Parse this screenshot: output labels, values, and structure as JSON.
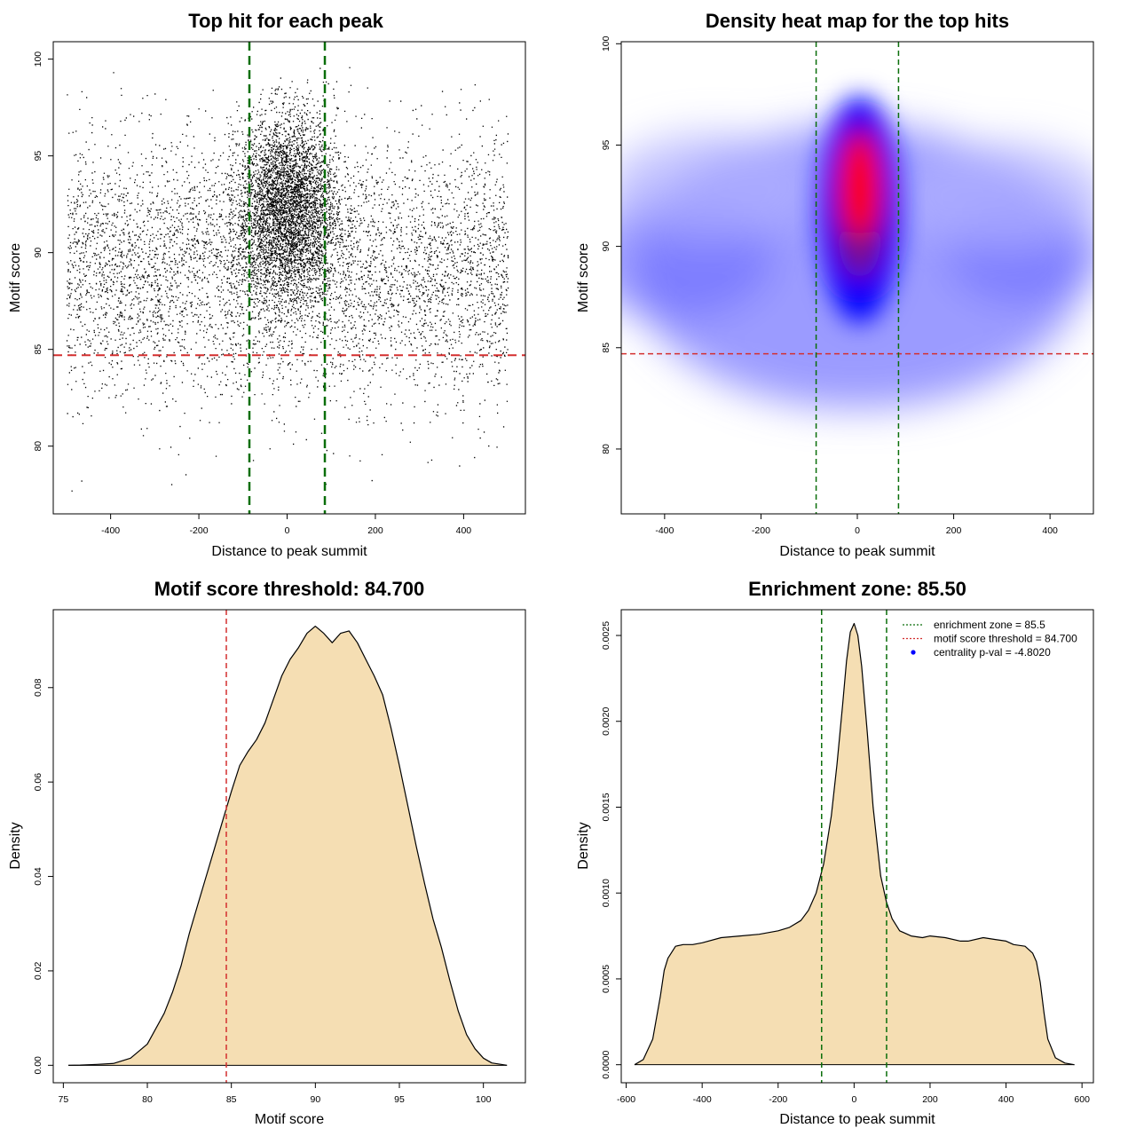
{
  "chart_data": [
    {
      "type": "scatter",
      "title": "Top hit for each peak",
      "xlabel": "Distance to peak summit",
      "ylabel": "Motif score",
      "xlim": [
        -530,
        540
      ],
      "ylim": [
        76.5,
        100.9
      ],
      "xticks": [
        -400,
        -200,
        0,
        200,
        400
      ],
      "yticks": [
        80,
        85,
        90,
        95,
        100
      ],
      "point_color": "#000000",
      "threshold_line": {
        "y": 84.7,
        "color": "#d32f2f",
        "style": "dashed"
      },
      "zone_lines": {
        "x": [
          -85.5,
          85.5
        ],
        "color": "#0a6e0a",
        "style": "dashed"
      },
      "distribution": {
        "x_range": [
          -500,
          500
        ],
        "y_range_approx": [
          77,
          100
        ],
        "central_cluster": {
          "x_center": 0,
          "x_spread": 60,
          "y_center": 92.5
        },
        "n_points_approx": 12000
      }
    },
    {
      "type": "heatmap",
      "title": "Density heat map for the top hits",
      "xlabel": "Distance to peak summit",
      "ylabel": "Motif score",
      "xlim": [
        -490,
        490
      ],
      "ylim": [
        76.8,
        100.1
      ],
      "xticks": [
        -400,
        -200,
        0,
        200,
        400
      ],
      "yticks": [
        80,
        85,
        90,
        95,
        100
      ],
      "colors": {
        "low": "#ffffff",
        "mid": "#0000ff",
        "high": "#ff0000"
      },
      "peak": {
        "x": 5,
        "y": 93
      },
      "threshold_line": {
        "y": 84.7,
        "color": "#d32f2f",
        "style": "dashed"
      },
      "zone_lines": {
        "x": [
          -85.5,
          85.5
        ],
        "color": "#0a6e0a",
        "style": "dashed"
      }
    },
    {
      "type": "area",
      "title": "Motif score threshold: 84.700",
      "xlabel": "Motif score",
      "ylabel": "Density",
      "xlim": [
        74.4,
        102.5
      ],
      "ylim": [
        -0.0037,
        0.0965
      ],
      "xticks": [
        75,
        80,
        85,
        90,
        95,
        100
      ],
      "yticks": [
        0.0,
        0.02,
        0.04,
        0.06,
        0.08
      ],
      "ytick_labels": [
        "0.00",
        "0.02",
        "0.04",
        "0.06",
        "0.08"
      ],
      "fill": "#f5deb3",
      "threshold_line": {
        "x": 84.7,
        "color": "#d32f2f",
        "style": "dashed"
      },
      "x": [
        75.3,
        76,
        77,
        78,
        79,
        80,
        81,
        81.5,
        82,
        82.5,
        83,
        83.5,
        84,
        84.5,
        85,
        85.5,
        86,
        86.5,
        87,
        87.5,
        88,
        88.5,
        89,
        89.5,
        90,
        90.5,
        91,
        91.5,
        92,
        92.5,
        93,
        93.5,
        94,
        94.5,
        95,
        95.5,
        96,
        96.5,
        97,
        97.5,
        98,
        98.5,
        99,
        99.5,
        100,
        100.5,
        101.4
      ],
      "y": [
        0.0,
        5e-05,
        0.0002,
        0.0004,
        0.0015,
        0.0045,
        0.011,
        0.0155,
        0.021,
        0.028,
        0.034,
        0.04,
        0.046,
        0.052,
        0.058,
        0.0635,
        0.0665,
        0.069,
        0.0725,
        0.0775,
        0.0825,
        0.086,
        0.0885,
        0.0915,
        0.093,
        0.0915,
        0.0895,
        0.0915,
        0.092,
        0.0895,
        0.086,
        0.0825,
        0.0785,
        0.0715,
        0.0635,
        0.055,
        0.0465,
        0.0385,
        0.031,
        0.025,
        0.018,
        0.0115,
        0.0065,
        0.0035,
        0.0015,
        0.0005,
        0.0
      ]
    },
    {
      "type": "area",
      "title": "Enrichment zone: 85.50",
      "xlabel": "Distance to peak summit",
      "ylabel": "Density",
      "xlim": [
        -613,
        630
      ],
      "ylim": [
        -0.000105,
        0.00265
      ],
      "xticks": [
        -600,
        -400,
        -200,
        0,
        200,
        400,
        600
      ],
      "yticks": [
        0.0,
        0.0005,
        0.001,
        0.0015,
        0.002,
        0.0025
      ],
      "ytick_labels": [
        "0.0000",
        "0.0005",
        "0.0010",
        "0.0015",
        "0.0020",
        "0.0025"
      ],
      "fill": "#f5deb3",
      "zone_lines": {
        "x": [
          -85.5,
          85.5
        ],
        "color": "#0a6e0a",
        "style": "dashed"
      },
      "legend": {
        "placement": "top-right",
        "entries": [
          {
            "label": "enrichment zone = 85.5",
            "color": "#0a6e0a",
            "style": "dotted"
          },
          {
            "label": "motif score threshold = 84.700",
            "color": "#d32f2f",
            "style": "dotted"
          },
          {
            "label": "centrality p-val = -4.8020",
            "color": "#0000ff",
            "style": "point"
          }
        ]
      },
      "x": [
        -578,
        -555,
        -530,
        -510,
        -500,
        -490,
        -470,
        -450,
        -425,
        -400,
        -350,
        -300,
        -250,
        -200,
        -170,
        -140,
        -120,
        -100,
        -80,
        -60,
        -45,
        -30,
        -20,
        -10,
        0,
        10,
        20,
        35,
        50,
        70,
        85,
        100,
        120,
        150,
        180,
        200,
        240,
        280,
        300,
        340,
        370,
        400,
        420,
        450,
        470,
        480,
        490,
        500,
        510,
        530,
        555,
        580
      ],
      "y": [
        0.0,
        3e-05,
        0.00015,
        0.0004,
        0.00055,
        0.00062,
        0.00069,
        0.0007,
        0.0007,
        0.00071,
        0.00074,
        0.00075,
        0.00076,
        0.00078,
        0.0008,
        0.00084,
        0.0009,
        0.001,
        0.00117,
        0.00145,
        0.00175,
        0.0021,
        0.00235,
        0.00252,
        0.00257,
        0.0025,
        0.00232,
        0.00193,
        0.0015,
        0.0011,
        0.00095,
        0.00085,
        0.00078,
        0.00075,
        0.00074,
        0.00075,
        0.00074,
        0.00072,
        0.00072,
        0.00074,
        0.00073,
        0.00072,
        0.0007,
        0.00069,
        0.00065,
        0.0006,
        0.00048,
        0.0003,
        0.00015,
        4e-05,
        1e-05,
        0.0
      ]
    }
  ]
}
